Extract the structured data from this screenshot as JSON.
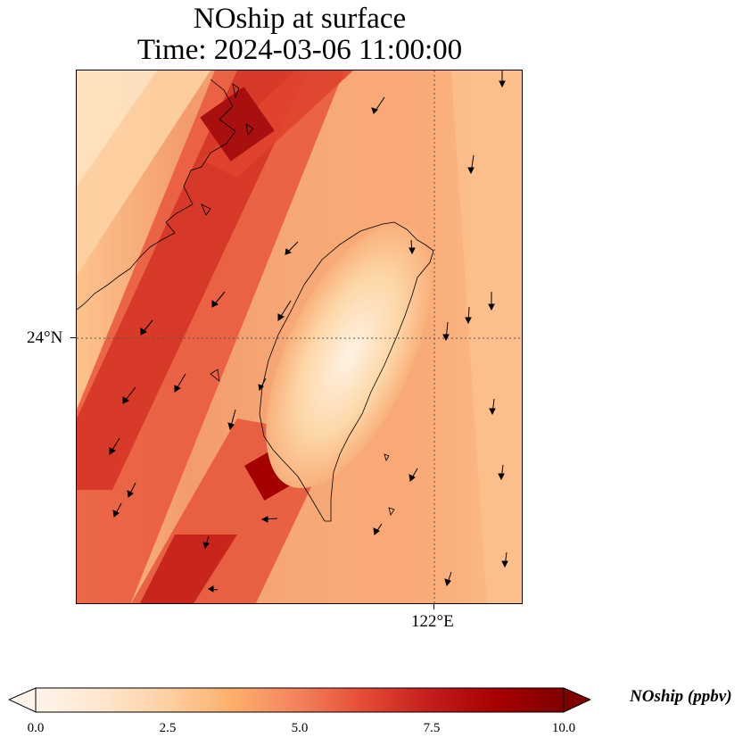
{
  "title": {
    "line1": "NOship at surface",
    "line2": "Time: 2024-03-06 11:00:00"
  },
  "axes": {
    "lat_label": "24°N",
    "lon_label": "122°E"
  },
  "colorbar": {
    "label": "NOship (ppbv)",
    "ticks": [
      "0.0",
      "2.5",
      "5.0",
      "7.5",
      "10.0"
    ],
    "min": 0,
    "max": 10,
    "colors": [
      "#fff5eb",
      "#fee6ce",
      "#fdd0a2",
      "#fdae6b",
      "#f4815c",
      "#e34a33",
      "#c21c1c",
      "#a50000",
      "#7f0000"
    ]
  },
  "map": {
    "colormap": "OrRd",
    "region": "Taiwan Strait",
    "features": [
      "coastline",
      "gridlines",
      "wind-vectors"
    ]
  }
}
